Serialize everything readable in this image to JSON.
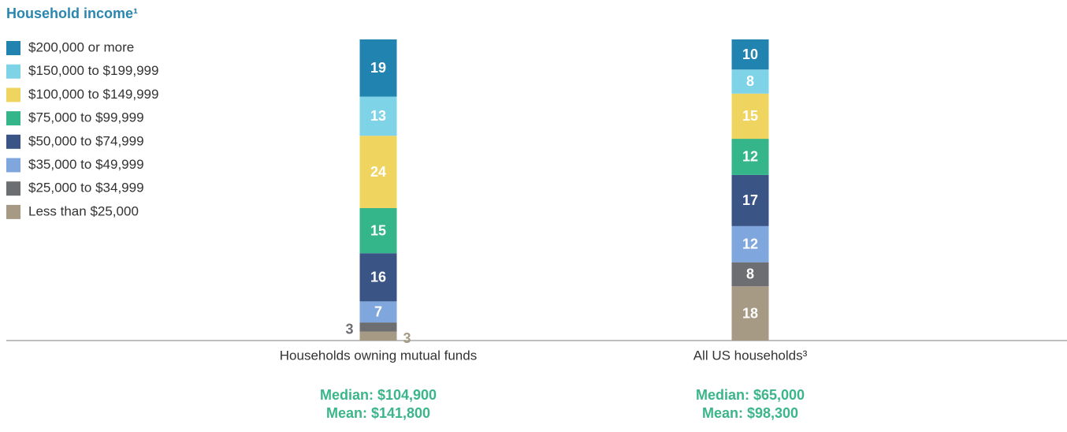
{
  "chart_data": {
    "type": "stacked_bar",
    "title": "Household income¹",
    "categories": [
      "Households owning mutual funds",
      "All US households³"
    ],
    "series": [
      {
        "name": "$200,000 or more",
        "color": "#2183b0",
        "values": [
          19,
          10
        ]
      },
      {
        "name": "$150,000 to $199,999",
        "color": "#7fd3e6",
        "values": [
          13,
          8
        ]
      },
      {
        "name": "$100,000 to $149,999",
        "color": "#f0d460",
        "values": [
          24,
          15
        ]
      },
      {
        "name": "$75,000 to $99,999",
        "color": "#35b58a",
        "values": [
          15,
          12
        ]
      },
      {
        "name": "$50,000 to $74,999",
        "color": "#3b5486",
        "values": [
          16,
          17
        ]
      },
      {
        "name": "$35,000 to $49,999",
        "color": "#7fa7dd",
        "values": [
          7,
          12
        ]
      },
      {
        "name": "$25,000 to $34,999",
        "color": "#6d6e72",
        "values": [
          3,
          8
        ]
      },
      {
        "name": "Less than $25,000",
        "color": "#a69a85",
        "values": [
          3,
          18
        ]
      }
    ],
    "ylim": [
      0,
      100
    ],
    "stats": [
      [
        "Median: $104,900",
        "Mean: $141,800"
      ],
      [
        "Median: $65,000",
        "Mean: $98,300"
      ]
    ]
  }
}
